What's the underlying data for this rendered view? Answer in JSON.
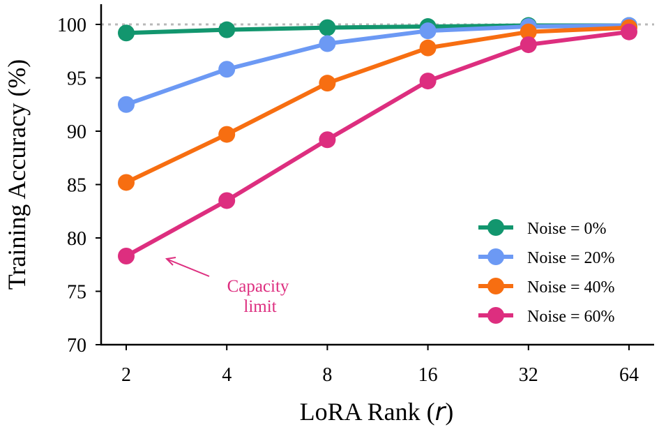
{
  "chart_data": {
    "type": "line",
    "title": "",
    "xlabel": "LoRA Rank (",
    "xlabel_var": "r",
    "xlabel_close": ")",
    "ylabel": "Training Accuracy (%)",
    "categories": [
      "2",
      "4",
      "8",
      "16",
      "32",
      "64"
    ],
    "ylim": [
      70,
      102
    ],
    "yticks": [
      70,
      75,
      80,
      85,
      90,
      95,
      100
    ],
    "reference_line": 100,
    "legend_position": "bottom-right",
    "series": [
      {
        "name": "Noise = 0%",
        "color": "#12966e",
        "values": [
          99.2,
          99.5,
          99.7,
          99.8,
          99.9,
          99.9
        ]
      },
      {
        "name": "Noise = 20%",
        "color": "#6c99f4",
        "values": [
          92.5,
          95.8,
          98.2,
          99.4,
          99.8,
          99.9
        ]
      },
      {
        "name": "Noise = 40%",
        "color": "#f76e11",
        "values": [
          85.2,
          89.7,
          94.5,
          97.8,
          99.3,
          99.7
        ]
      },
      {
        "name": "Noise = 60%",
        "color": "#dd2e7f",
        "values": [
          78.3,
          83.5,
          89.2,
          94.7,
          98.1,
          99.3
        ]
      }
    ],
    "annotation": {
      "lines": [
        "Capacity",
        "limit"
      ],
      "color": "#dd2e7f"
    }
  }
}
